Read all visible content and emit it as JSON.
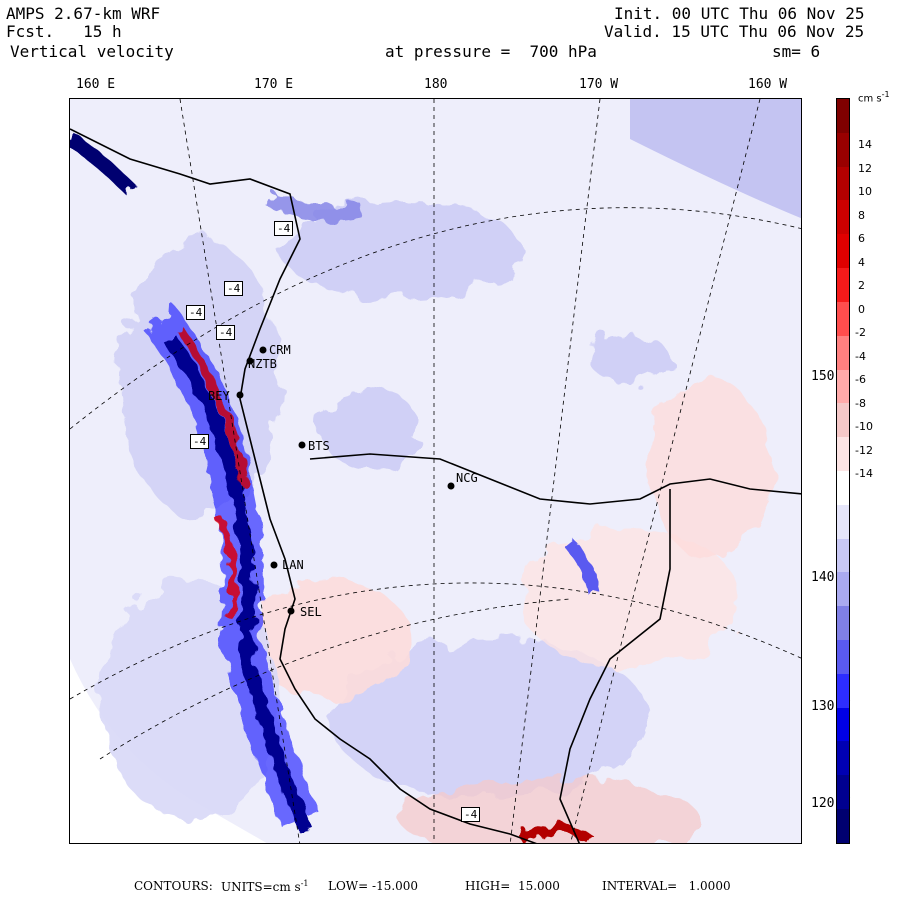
{
  "header": {
    "model": "AMPS 2.67-km WRF",
    "fcst_label": "Fcst.",
    "fcst_value": "15 h",
    "field": "Vertical velocity",
    "init": "Init. 00 UTC Thu 06 Nov 25",
    "valid": "Valid. 15 UTC Thu 06 Nov 25",
    "pressure": "at pressure =  700 hPa",
    "smoothing": "sm= 6"
  },
  "longitude_labels": [
    "160 E",
    "170 E",
    "180",
    "170 W",
    "160 W"
  ],
  "latitude_labels": [
    "150 W",
    "140 W",
    "130 W",
    "120 W"
  ],
  "stations": [
    "CRM",
    "NZTB",
    "BEY",
    "BTS",
    "NCG",
    "LAN",
    "SEL"
  ],
  "contour_boxes": [
    "-4",
    "-4",
    "-4",
    "-4",
    "-4",
    "-4"
  ],
  "colorbar": {
    "unit": "cm s",
    "unit_exp": "-1",
    "ticks": [
      "14",
      "12",
      "10",
      "8",
      "6",
      "4",
      "2",
      "0",
      "-2",
      "-4",
      "-6",
      "-8",
      "-10",
      "-12",
      "-14"
    ],
    "colors": [
      "#7f0000",
      "#990000",
      "#b30000",
      "#cc0000",
      "#e00000",
      "#f51a1a",
      "#ff4d4d",
      "#ff8080",
      "#ffaaaa",
      "#f5c8c8",
      "#fce4e4",
      "#ffffff",
      "#e6e6fa",
      "#c8c8f5",
      "#aaaaf0",
      "#8080e6",
      "#5a5af0",
      "#2d2dff",
      "#0000e6",
      "#0000b3",
      "#000090",
      "#000070"
    ]
  },
  "footer": {
    "contours": "CONTOURS:",
    "units": "UNITS=cm s",
    "units_exp": "-1",
    "low": "LOW= -15.000",
    "high": "HIGH=  15.000",
    "interval": "INTERVAL=   1.0000"
  }
}
